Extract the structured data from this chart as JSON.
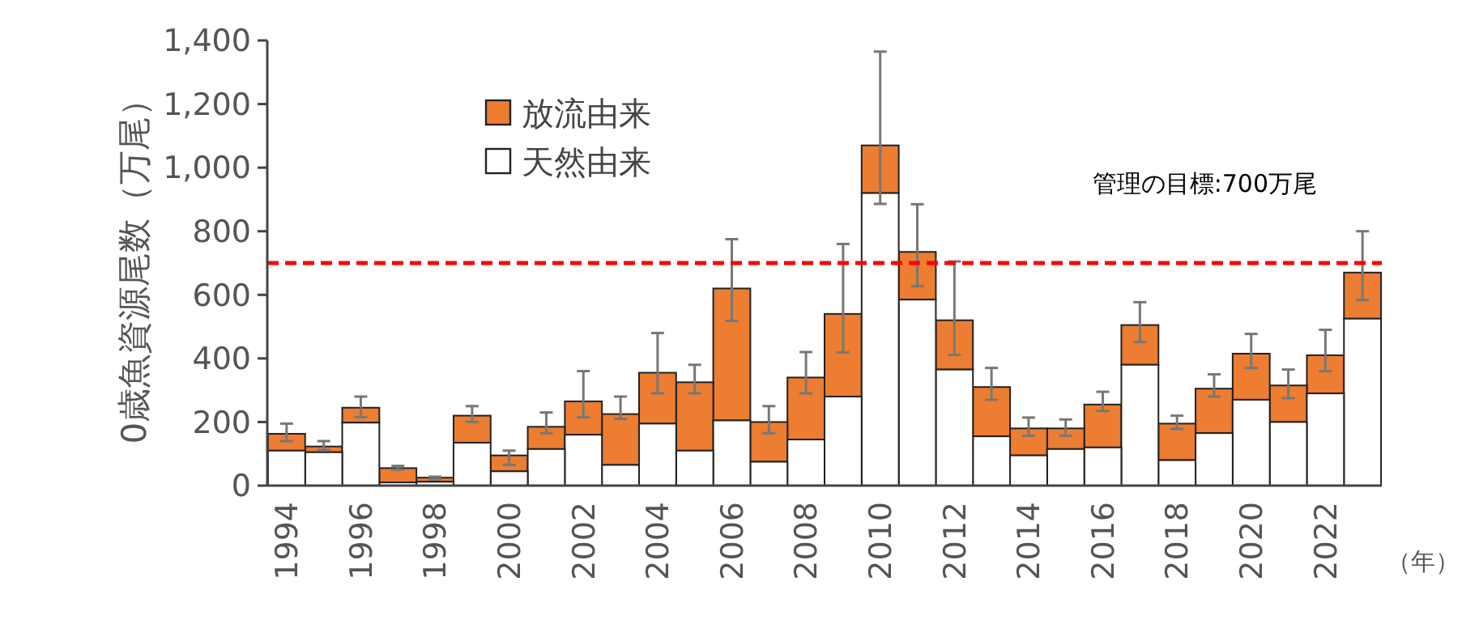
{
  "chart_data": {
    "type": "bar",
    "stacked": true,
    "ylabel": "0歳魚資源尾数（万尾）",
    "xlabel": "（年）",
    "categories": [
      "1994",
      null,
      "1996",
      null,
      "1998",
      null,
      "2000",
      null,
      "2002",
      null,
      "2004",
      null,
      "2006",
      null,
      "2008",
      null,
      "2010",
      null,
      "2012",
      null,
      "2014",
      null,
      "2016",
      null,
      "2018",
      null,
      "2020",
      null,
      "2022",
      null
    ],
    "series": [
      {
        "name": "天然由来",
        "color": "#ffffff",
        "values": [
          110,
          105,
          198,
          10,
          12,
          135,
          45,
          115,
          160,
          65,
          195,
          110,
          205,
          75,
          145,
          280,
          920,
          585,
          365,
          155,
          95,
          115,
          120,
          380,
          80,
          165,
          270,
          200,
          290,
          525
        ]
      },
      {
        "name": "放流由来",
        "color": "#ed7d31",
        "values": [
          53,
          18,
          47,
          45,
          13,
          85,
          50,
          70,
          105,
          160,
          160,
          215,
          415,
          125,
          195,
          260,
          150,
          150,
          155,
          155,
          85,
          65,
          135,
          125,
          115,
          140,
          145,
          115,
          120,
          145
        ],
        "errors": [
          [
            140,
            195
          ],
          [
            112,
            140
          ],
          [
            215,
            280
          ],
          [
            50,
            62
          ],
          [
            20,
            28
          ],
          [
            200,
            250
          ],
          [
            65,
            110
          ],
          [
            165,
            230
          ],
          [
            215,
            360
          ],
          [
            210,
            280
          ],
          [
            290,
            480
          ],
          [
            290,
            380
          ],
          [
            518,
            775
          ],
          [
            165,
            250
          ],
          [
            290,
            420
          ],
          [
            419,
            760
          ],
          [
            886,
            1365
          ],
          [
            627,
            885
          ],
          [
            411,
            705
          ],
          [
            270,
            370
          ],
          [
            157,
            214
          ],
          [
            157,
            208
          ],
          [
            235,
            295
          ],
          [
            452,
            577
          ],
          [
            178,
            220
          ],
          [
            280,
            350
          ],
          [
            370,
            477
          ],
          [
            275,
            365
          ],
          [
            360,
            490
          ],
          [
            584,
            800
          ]
        ]
      }
    ],
    "ylim": [
      0,
      1400
    ],
    "yticks": [
      0,
      {
        "value": 200,
        "label": "200"
      },
      {
        "value": 400,
        "label": "400"
      },
      {
        "value": 600,
        "label": "600"
      },
      {
        "value": 800,
        "label": "800"
      },
      {
        "value": 1000,
        "label": "1,000"
      },
      {
        "value": 1200,
        "label": "1,200"
      },
      {
        "value": 1400,
        "label": "1,400"
      }
    ],
    "ref_lines": [
      {
        "axis": "y",
        "value": 700,
        "label": "管理の目標:700万尾",
        "color": "#ff0000",
        "line_style": "dashed"
      }
    ],
    "legend": "top left",
    "grid": false
  }
}
